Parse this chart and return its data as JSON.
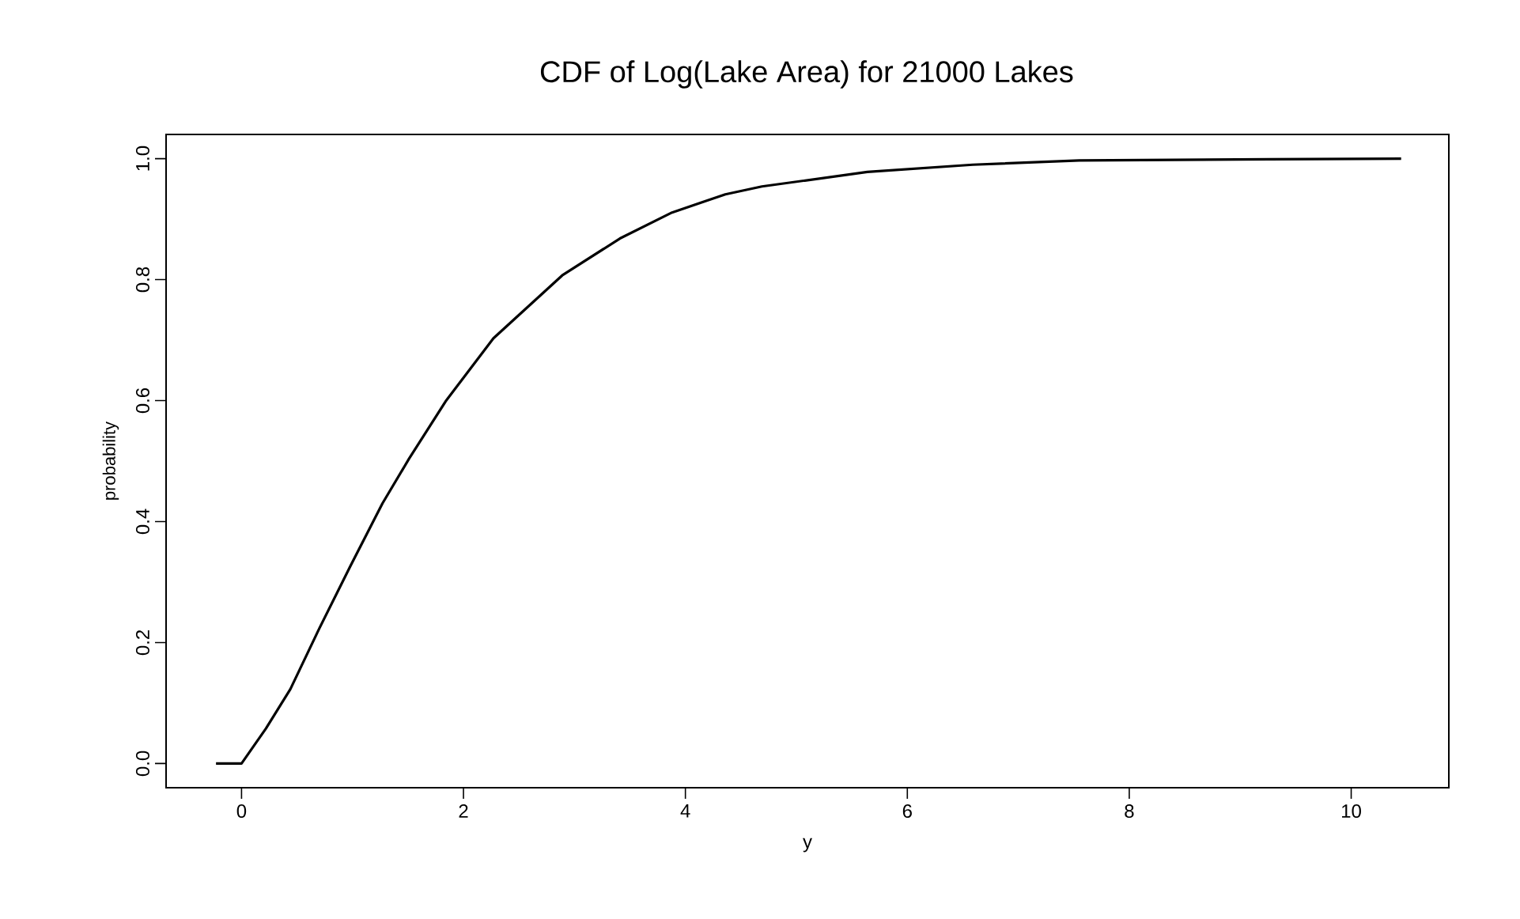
{
  "chart_data": {
    "type": "line",
    "title": "CDF of Log(Lake Area) for 21000 Lakes",
    "xlabel": "y",
    "ylabel": "probability",
    "x": [
      -0.23,
      0.0,
      0.22,
      0.44,
      0.7,
      0.98,
      1.27,
      1.51,
      1.84,
      2.27,
      2.89,
      3.41,
      3.88,
      4.36,
      4.69,
      5.64,
      6.59,
      7.55,
      9.26,
      10.45
    ],
    "series": [
      {
        "color": "#000000",
        "values": [
          0.0,
          0.0,
          0.058,
          0.123,
          0.223,
          0.326,
          0.43,
          0.504,
          0.599,
          0.703,
          0.807,
          0.868,
          0.911,
          0.941,
          0.954,
          0.978,
          0.99,
          0.997,
          0.999,
          1.0
        ]
      }
    ],
    "xlim": [
      -0.68,
      10.88
    ],
    "ylim": [
      -0.04,
      1.04
    ],
    "xticks": [
      0,
      2,
      4,
      6,
      8,
      10
    ],
    "yticks": [
      {
        "value": 0,
        "label": "0.0"
      },
      {
        "value": 0.2,
        "label": "0.2"
      },
      {
        "value": 0.4,
        "label": "0.4"
      },
      {
        "value": 0.6,
        "label": "0.6"
      },
      {
        "value": 0.8,
        "label": "0.8"
      },
      {
        "value": 1.0,
        "label": "1.0"
      }
    ],
    "grid": false,
    "marker": "none",
    "line_style": "solid"
  }
}
